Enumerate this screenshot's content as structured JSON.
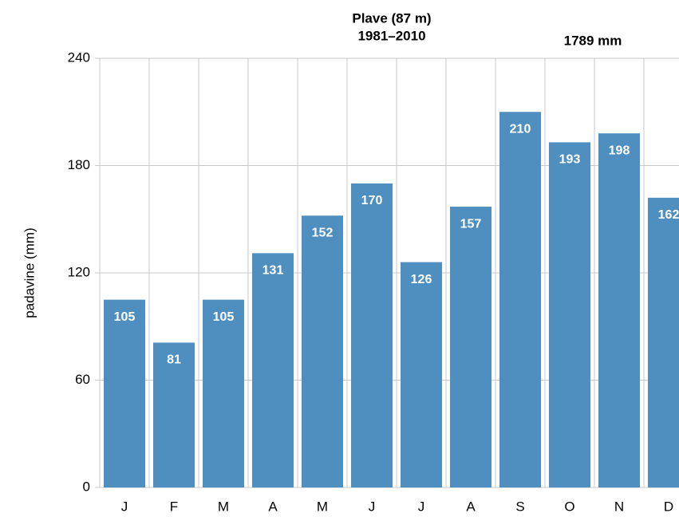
{
  "chart_data": {
    "type": "bar",
    "title": "Plave (87 m)",
    "subtitle": "1981–2010",
    "annotation": "1789 mm",
    "y_label": "padavine (mm)",
    "categories": [
      "J",
      "F",
      "M",
      "A",
      "M",
      "J",
      "J",
      "A",
      "S",
      "O",
      "N",
      "D"
    ],
    "values": [
      105,
      81,
      105,
      131,
      152,
      170,
      126,
      157,
      210,
      193,
      198,
      162
    ],
    "color": "#4f8fbf",
    "ylim": [
      0,
      240
    ],
    "yticks": [
      0,
      60,
      120,
      180,
      240
    ],
    "grid": true
  }
}
